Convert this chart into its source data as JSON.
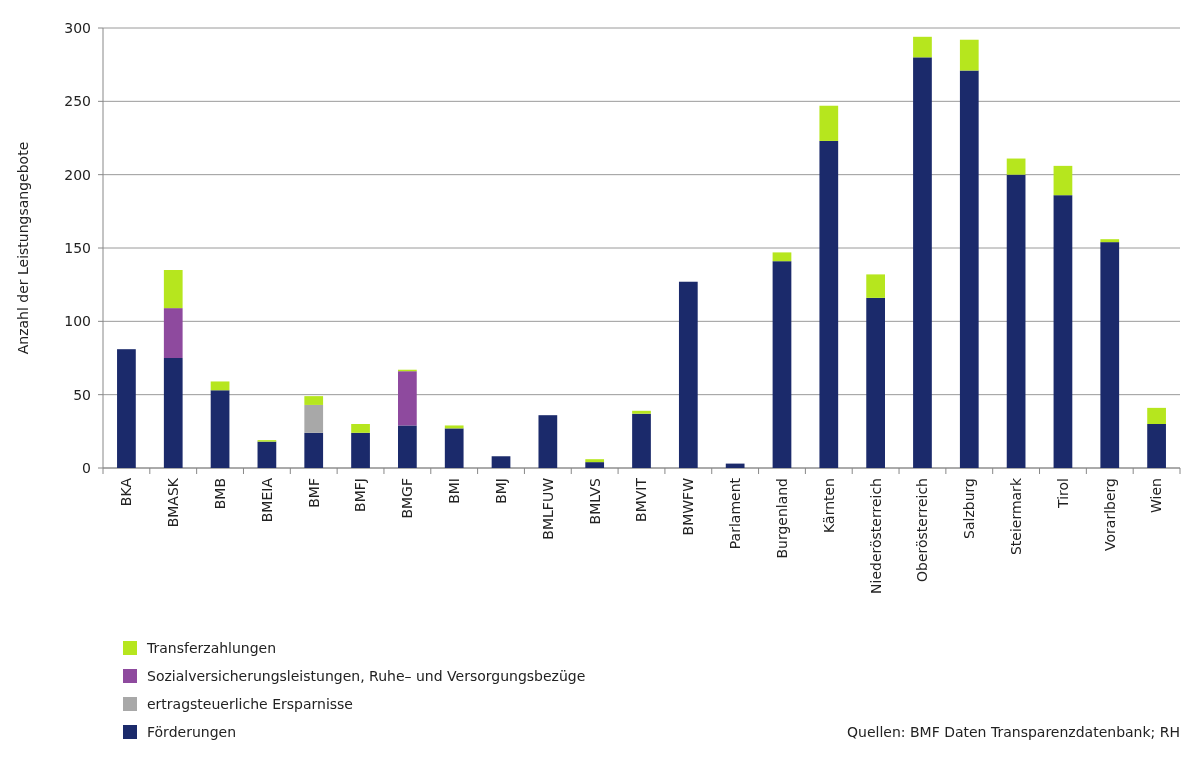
{
  "chart_data": {
    "type": "bar",
    "stacked": true,
    "ylabel": "Anzahl der Leistungsangebote",
    "categories": [
      "BKA",
      "BMASK",
      "BMB",
      "BMEIA",
      "BMF",
      "BMFJ",
      "BMGF",
      "BMI",
      "BMJ",
      "BMLFUW",
      "BMLVS",
      "BMVIT",
      "BMWFW",
      "Parlament",
      "Burgenland",
      "Kärnten",
      "Niederösterreich",
      "Oberösterreich",
      "Salzburg",
      "Steiermark",
      "Tirol",
      "Vorarlberg",
      "Wien"
    ],
    "series": [
      {
        "name": "Förderungen",
        "color": "#1b2a6b",
        "values": [
          81,
          75,
          53,
          18,
          24,
          24,
          29,
          27,
          8,
          36,
          4,
          37,
          127,
          3,
          141,
          223,
          116,
          280,
          271,
          200,
          186,
          154,
          30
        ]
      },
      {
        "name": "ertragsteuerliche Ersparnisse",
        "color": "#a8a8a8",
        "values": [
          0,
          0,
          0,
          0,
          19,
          0,
          0,
          0,
          0,
          0,
          0,
          0,
          0,
          0,
          0,
          0,
          0,
          0,
          0,
          0,
          0,
          0,
          0
        ]
      },
      {
        "name": "Sozialversicherungsleistungen, Ruhe– und Versorgungsbezüge",
        "color": "#8e4a9e",
        "values": [
          0,
          34,
          0,
          0,
          0,
          0,
          37,
          0,
          0,
          0,
          0,
          0,
          0,
          0,
          0,
          0,
          0,
          0,
          0,
          0,
          0,
          0,
          0
        ]
      },
      {
        "name": "Transferzahlungen",
        "color": "#b6e61e",
        "values": [
          0,
          26,
          6,
          1,
          6,
          6,
          1,
          2,
          0,
          0,
          2,
          2,
          0,
          0,
          6,
          24,
          16,
          14,
          21,
          11,
          20,
          2,
          11
        ]
      }
    ],
    "ylim": [
      0,
      300
    ],
    "yticks": [
      0,
      50,
      100,
      150,
      200,
      250,
      300
    ],
    "grid": "y",
    "legend": "bottom left",
    "annotations": [
      "Quellen: BMF Daten Transparenzdatenbank; RH"
    ]
  }
}
